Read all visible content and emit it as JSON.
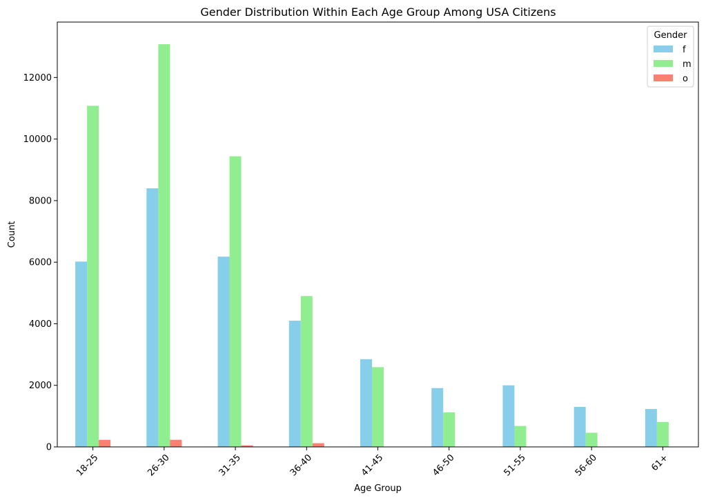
{
  "chart_data": {
    "type": "bar",
    "title": "Gender Distribution Within Each Age Group Among USA Citizens",
    "xlabel": "Age Group",
    "ylabel": "Count",
    "categories": [
      "18-25",
      "26-30",
      "31-35",
      "36-40",
      "41-45",
      "46-50",
      "51-55",
      "56-60",
      "61+"
    ],
    "ylim": [
      0,
      13800
    ],
    "yticks": [
      0,
      2000,
      4000,
      6000,
      8000,
      10000,
      12000
    ],
    "grid": false,
    "legend": {
      "title": "Gender",
      "position": "top-right"
    },
    "series": [
      {
        "name": "f",
        "color": "#87ceeb",
        "values": [
          6020,
          8400,
          6180,
          4100,
          2850,
          1910,
          2000,
          1300,
          1230
        ]
      },
      {
        "name": "m",
        "color": "#90ee90",
        "values": [
          11080,
          13080,
          9440,
          4900,
          2590,
          1120,
          680,
          460,
          810
        ]
      },
      {
        "name": "o",
        "color": "#fa8072",
        "values": [
          230,
          230,
          50,
          120,
          0,
          0,
          0,
          0,
          0
        ]
      }
    ]
  }
}
